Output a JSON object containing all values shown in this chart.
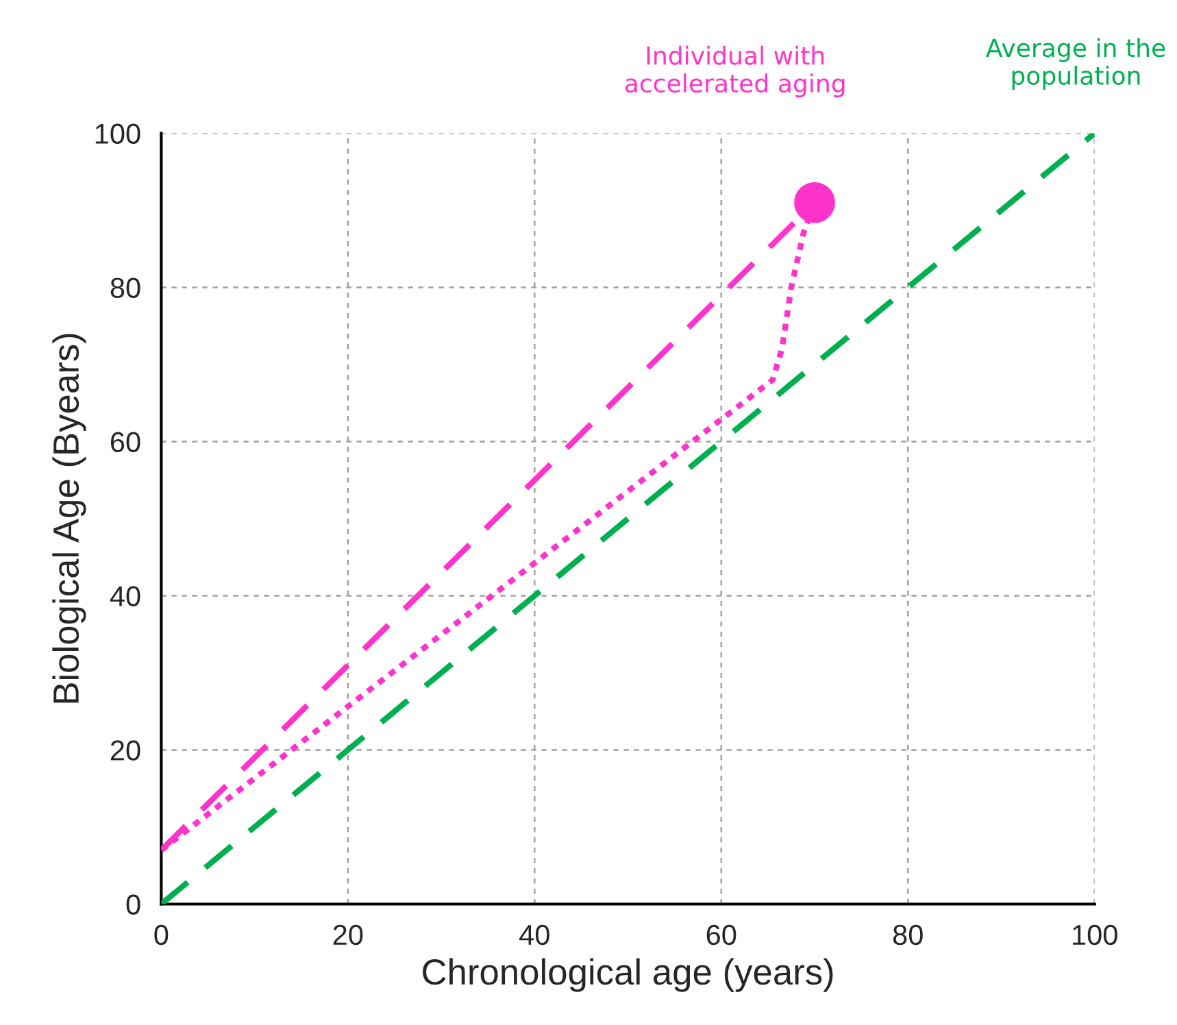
{
  "chart_data": {
    "type": "line",
    "xlabel": "Chronological age (years)",
    "ylabel": "Biological Age (Byears)",
    "xlim": [
      0,
      100
    ],
    "ylim": [
      0,
      100
    ],
    "xticks": [
      0,
      20,
      40,
      60,
      80,
      100
    ],
    "yticks": [
      0,
      20,
      40,
      60,
      80,
      100
    ],
    "grid": true,
    "series": [
      {
        "color": "#00b050",
        "line_style": "dashed",
        "x": [
          0,
          100
        ],
        "values": [
          0,
          100
        ]
      },
      {
        "color": "#ff33cc",
        "line_style": "dashed",
        "x": [
          0,
          70
        ],
        "values": [
          7,
          91
        ]
      },
      {
        "color": "#ff33cc",
        "line_style": "dotted",
        "x": [
          0,
          65.5,
          66.5,
          67.5,
          68.8,
          70
        ],
        "values": [
          7,
          68,
          72,
          80,
          87,
          91
        ]
      },
      {
        "type": "scatter",
        "color": "#ff33cc",
        "marker": "circle",
        "x": [
          70
        ],
        "values": [
          91
        ]
      }
    ],
    "annotations": [
      "Average in the\npopulation",
      "Individual with\naccelerated aging"
    ]
  }
}
